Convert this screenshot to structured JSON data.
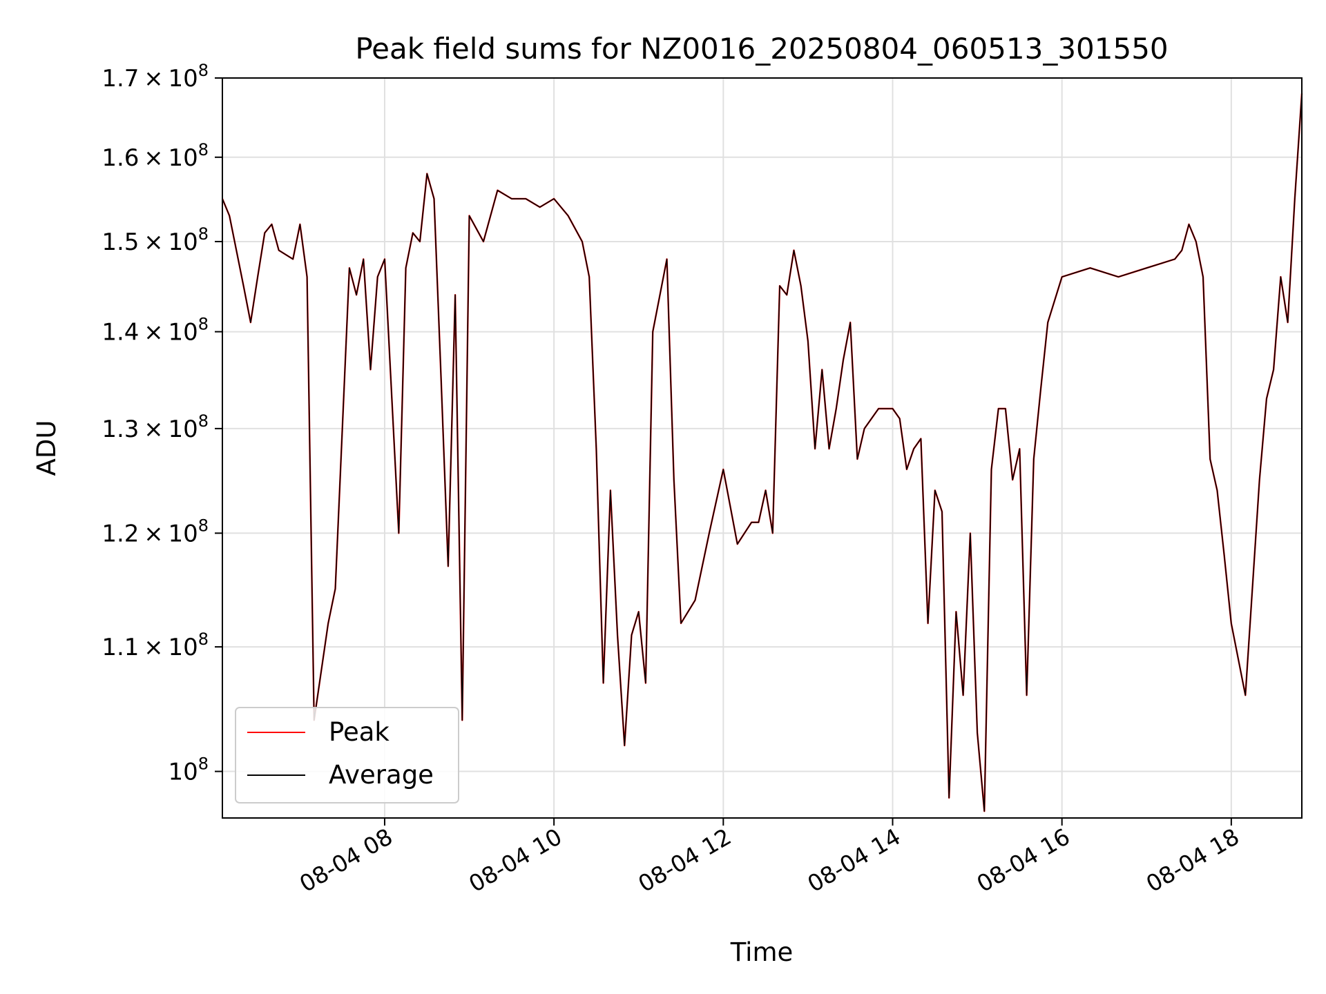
{
  "chart_data": {
    "type": "line",
    "title": "Peak field sums for NZ0016_20250804_060513_301550",
    "xlabel": "Time",
    "ylabel": "ADU",
    "yscale": "log",
    "xlim": [
      "2025-08-04T06:05",
      "2025-08-04T18:50"
    ],
    "ylim": [
      96500000,
      170000000
    ],
    "x_ticks": [
      "08-04 08",
      "08-04 10",
      "08-04 12",
      "08-04 14",
      "08-04 16",
      "08-04 18"
    ],
    "y_ticks": [
      {
        "value": 100000000,
        "mantissa": "",
        "exponent": "8"
      },
      {
        "value": 110000000,
        "mantissa": "1.1",
        "exponent": "8"
      },
      {
        "value": 120000000,
        "mantissa": "1.2",
        "exponent": "8"
      },
      {
        "value": 130000000,
        "mantissa": "1.3",
        "exponent": "8"
      },
      {
        "value": 140000000,
        "mantissa": "1.4",
        "exponent": "8"
      },
      {
        "value": 150000000,
        "mantissa": "1.5",
        "exponent": "8"
      },
      {
        "value": 160000000,
        "mantissa": "1.6",
        "exponent": "8"
      },
      {
        "value": 170000000,
        "mantissa": "1.7",
        "exponent": "8"
      }
    ],
    "grid": true,
    "legend_position": "lower-left",
    "x": [
      "06:05",
      "06:10",
      "06:20",
      "06:25",
      "06:30",
      "06:35",
      "06:40",
      "06:45",
      "06:55",
      "07:00",
      "07:05",
      "07:10",
      "07:20",
      "07:25",
      "07:35",
      "07:40",
      "07:45",
      "07:50",
      "07:55",
      "08:00",
      "08:10",
      "08:15",
      "08:20",
      "08:25",
      "08:30",
      "08:35",
      "08:40",
      "08:45",
      "08:50",
      "08:55",
      "09:00",
      "09:10",
      "09:20",
      "09:30",
      "09:40",
      "09:50",
      "10:00",
      "10:10",
      "10:20",
      "10:25",
      "10:30",
      "10:35",
      "10:40",
      "10:45",
      "10:50",
      "10:55",
      "11:00",
      "11:05",
      "11:10",
      "11:20",
      "11:25",
      "11:30",
      "11:40",
      "11:50",
      "12:00",
      "12:10",
      "12:20",
      "12:25",
      "12:30",
      "12:35",
      "12:40",
      "12:45",
      "12:50",
      "12:55",
      "13:00",
      "13:05",
      "13:10",
      "13:15",
      "13:20",
      "13:25",
      "13:30",
      "13:35",
      "13:40",
      "13:50",
      "14:00",
      "14:05",
      "14:10",
      "14:15",
      "14:20",
      "14:25",
      "14:30",
      "14:35",
      "14:40",
      "14:45",
      "14:50",
      "14:55",
      "15:00",
      "15:05",
      "15:10",
      "15:15",
      "15:20",
      "15:25",
      "15:30",
      "15:35",
      "15:40",
      "15:45",
      "15:50",
      "16:00",
      "16:20",
      "16:40",
      "17:00",
      "17:20",
      "17:25",
      "17:30",
      "17:35",
      "17:40",
      "17:45",
      "17:50",
      "17:55",
      "18:00",
      "18:10",
      "18:20",
      "18:25",
      "18:30",
      "18:35",
      "18:40",
      "18:45",
      "18:50"
    ],
    "series": [
      {
        "name": "Peak",
        "color": "#ff0000",
        "values": [
          155,
          153,
          145,
          141,
          146,
          151,
          152,
          149,
          148,
          152,
          146,
          104,
          112,
          115,
          147,
          144,
          148,
          136,
          146,
          148,
          120,
          147,
          151,
          150,
          158,
          155,
          135,
          117,
          144,
          104,
          153,
          150,
          156,
          155,
          155,
          154,
          155,
          153,
          150,
          146,
          128,
          107,
          124,
          111,
          102,
          111,
          113,
          107,
          140,
          148,
          125,
          112,
          114,
          120,
          126,
          119,
          121,
          121,
          124,
          120,
          145,
          144,
          149,
          145,
          139,
          128,
          136,
          128,
          132,
          137,
          141,
          127,
          130,
          132,
          132,
          131,
          126,
          128,
          129,
          112,
          124,
          122,
          98,
          113,
          106,
          120,
          103,
          97,
          126,
          132,
          132,
          125,
          128,
          106,
          127,
          134,
          141,
          146,
          147,
          146,
          147,
          148,
          149,
          152,
          150,
          146,
          127,
          124,
          118,
          112,
          106,
          125,
          133,
          136,
          146,
          141,
          155,
          168
        ]
      },
      {
        "name": "Average",
        "color": "#000000",
        "values": [
          155,
          153,
          145,
          141,
          146,
          151,
          152,
          149,
          148,
          152,
          146,
          104,
          112,
          115,
          147,
          144,
          148,
          136,
          146,
          148,
          120,
          147,
          151,
          150,
          158,
          155,
          135,
          117,
          144,
          104,
          153,
          150,
          156,
          155,
          155,
          154,
          155,
          153,
          150,
          146,
          128,
          107,
          124,
          111,
          102,
          111,
          113,
          107,
          140,
          148,
          125,
          112,
          114,
          120,
          126,
          119,
          121,
          121,
          124,
          120,
          145,
          144,
          149,
          145,
          139,
          128,
          136,
          128,
          132,
          137,
          141,
          127,
          130,
          132,
          132,
          131,
          126,
          128,
          129,
          112,
          124,
          122,
          98,
          113,
          106,
          120,
          103,
          97,
          126,
          132,
          132,
          125,
          128,
          106,
          127,
          134,
          141,
          146,
          147,
          146,
          147,
          148,
          149,
          152,
          150,
          146,
          127,
          124,
          118,
          112,
          106,
          125,
          133,
          136,
          146,
          141,
          155,
          168
        ]
      }
    ]
  }
}
